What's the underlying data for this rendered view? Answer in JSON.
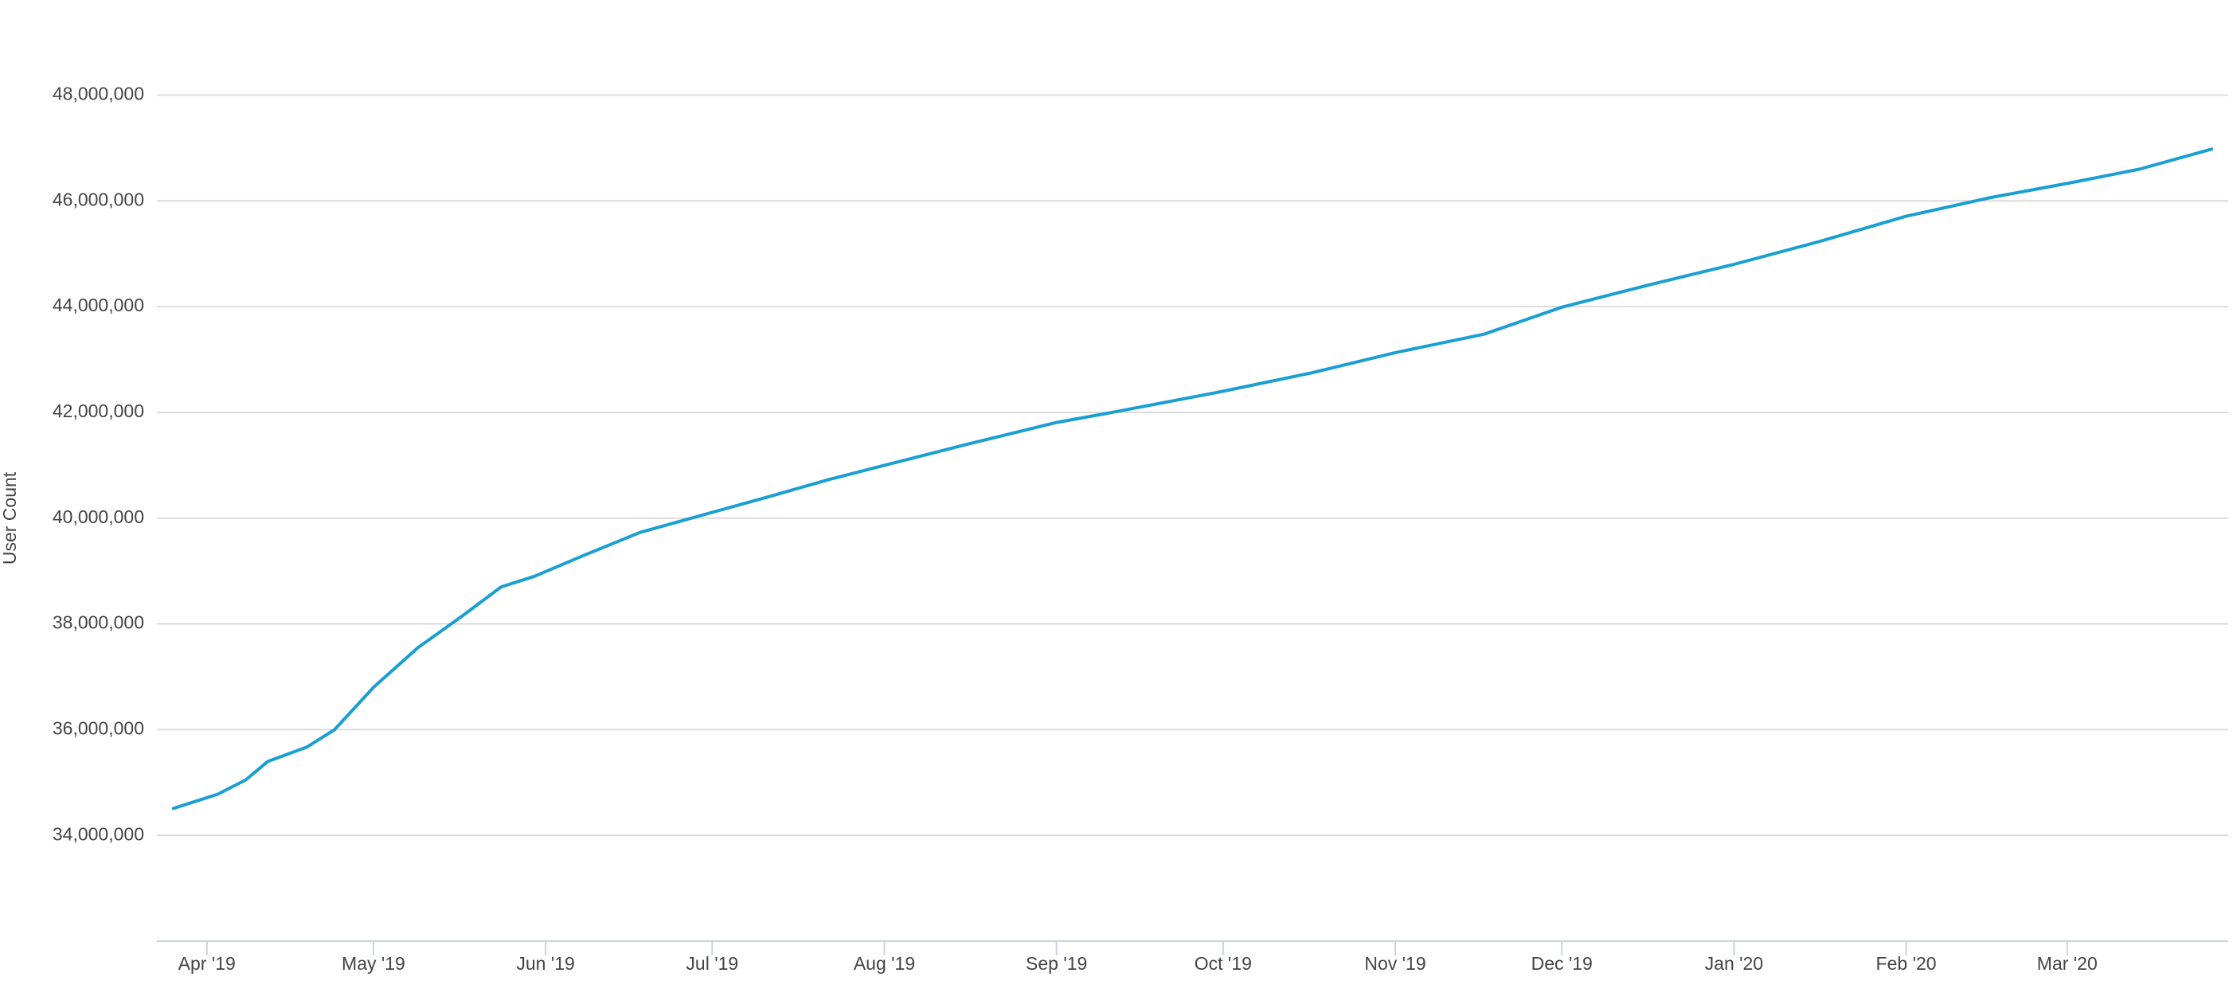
{
  "chart_data": {
    "type": "line",
    "y_label": "User Count",
    "x": [
      "2019-03-26",
      "2019-04-03",
      "2019-04-08",
      "2019-04-12",
      "2019-04-19",
      "2019-04-24",
      "2019-05-01",
      "2019-05-09",
      "2019-05-17",
      "2019-05-24",
      "2019-05-30",
      "2019-06-08",
      "2019-06-18",
      "2019-07-01",
      "2019-07-11",
      "2019-07-22",
      "2019-08-01",
      "2019-08-16",
      "2019-09-01",
      "2019-09-11",
      "2019-10-01",
      "2019-10-17",
      "2019-11-01",
      "2019-11-17",
      "2019-12-01",
      "2019-12-17",
      "2020-01-01",
      "2020-01-17",
      "2020-02-01",
      "2020-02-16",
      "2020-03-01",
      "2020-03-14",
      "2020-03-27"
    ],
    "series": [
      {
        "name": "User Count",
        "color": "#1a9fd3",
        "values": [
          34510000,
          34780000,
          35050000,
          35400000,
          35670000,
          36000000,
          36800000,
          37550000,
          38150000,
          38700000,
          38900000,
          39300000,
          39730000,
          40110000,
          40400000,
          40730000,
          41000000,
          41400000,
          41810000,
          42000000,
          42400000,
          42750000,
          43130000,
          43480000,
          43990000,
          44420000,
          44800000,
          45250000,
          45710000,
          46060000,
          46330000,
          46600000,
          46980000
        ]
      }
    ],
    "xlim": [
      "2019-03-23",
      "2020-03-30"
    ],
    "xticks": [
      {
        "value": "2019-04-01",
        "label": "Apr '19"
      },
      {
        "value": "2019-05-01",
        "label": "May '19"
      },
      {
        "value": "2019-06-01",
        "label": "Jun '19"
      },
      {
        "value": "2019-07-01",
        "label": "Jul '19"
      },
      {
        "value": "2019-08-01",
        "label": "Aug '19"
      },
      {
        "value": "2019-09-01",
        "label": "Sep '19"
      },
      {
        "value": "2019-10-01",
        "label": "Oct '19"
      },
      {
        "value": "2019-11-01",
        "label": "Nov '19"
      },
      {
        "value": "2019-12-01",
        "label": "Dec '19"
      },
      {
        "value": "2020-01-01",
        "label": "Jan '20"
      },
      {
        "value": "2020-02-01",
        "label": "Feb '20"
      },
      {
        "value": "2020-03-01",
        "label": "Mar '20"
      }
    ],
    "ylim": [
      32000000,
      49800000
    ],
    "yticks": [
      {
        "value": 34000000,
        "label": "34,000,000"
      },
      {
        "value": 36000000,
        "label": "36,000,000"
      },
      {
        "value": 38000000,
        "label": "38,000,000"
      },
      {
        "value": 40000000,
        "label": "40,000,000"
      },
      {
        "value": 42000000,
        "label": "42,000,000"
      },
      {
        "value": 44000000,
        "label": "44,000,000"
      },
      {
        "value": 46000000,
        "label": "46,000,000"
      },
      {
        "value": 48000000,
        "label": "48,000,000"
      }
    ],
    "grid": true
  }
}
